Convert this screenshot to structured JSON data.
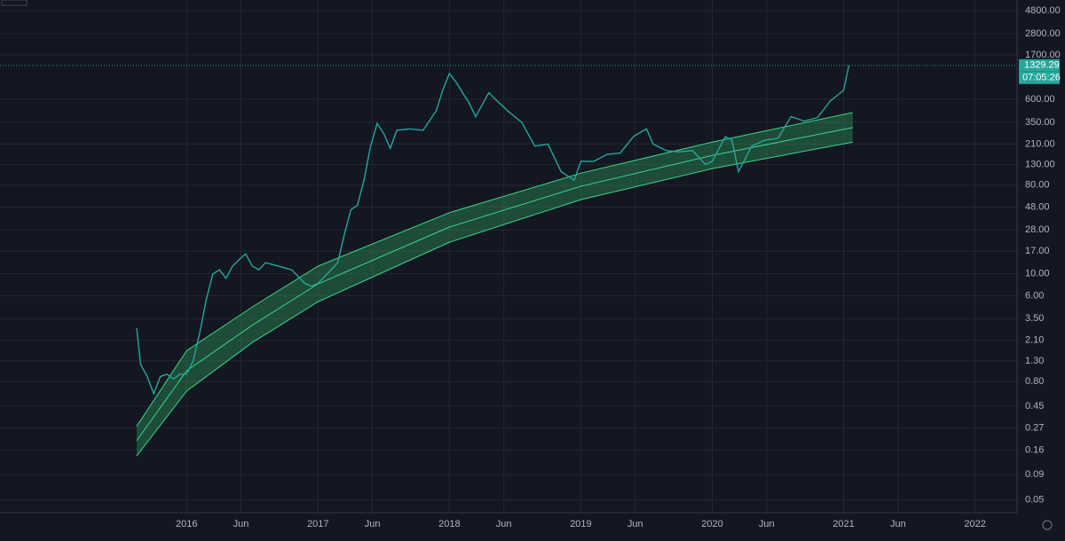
{
  "chart_data": {
    "type": "line",
    "log_scale": true,
    "grid": true,
    "xlim": [
      2014.58,
      2022.32
    ],
    "ylim": [
      0.037,
      6160
    ],
    "xticks": [
      {
        "value": 2016,
        "label": "2016"
      },
      {
        "value": 2016.414,
        "label": "Jun"
      },
      {
        "value": 2017,
        "label": "2017"
      },
      {
        "value": 2017.414,
        "label": "Jun"
      },
      {
        "value": 2018,
        "label": "2018"
      },
      {
        "value": 2018.414,
        "label": "Jun"
      },
      {
        "value": 2019,
        "label": "2019"
      },
      {
        "value": 2019.414,
        "label": "Jun"
      },
      {
        "value": 2020,
        "label": "2020"
      },
      {
        "value": 2020.414,
        "label": "Jun"
      },
      {
        "value": 2021,
        "label": "2021"
      },
      {
        "value": 2021.414,
        "label": "Jun"
      },
      {
        "value": 2022,
        "label": "2022"
      }
    ],
    "yticks": [
      {
        "value": 4800,
        "label": "4800.00"
      },
      {
        "value": 2800,
        "label": "2800.00"
      },
      {
        "value": 1700,
        "label": "1700.00"
      },
      {
        "value": 600,
        "label": "600.00"
      },
      {
        "value": 350,
        "label": "350.00"
      },
      {
        "value": 210,
        "label": "210.00"
      },
      {
        "value": 130,
        "label": "130.00"
      },
      {
        "value": 80,
        "label": "80.00"
      },
      {
        "value": 48,
        "label": "48.00"
      },
      {
        "value": 28,
        "label": "28.00"
      },
      {
        "value": 17,
        "label": "17.00"
      },
      {
        "value": 10,
        "label": "10.00"
      },
      {
        "value": 6,
        "label": "6.00"
      },
      {
        "value": 3.5,
        "label": "3.50"
      },
      {
        "value": 2.1,
        "label": "2.10"
      },
      {
        "value": 1.3,
        "label": "1.30"
      },
      {
        "value": 0.8,
        "label": "0.80"
      },
      {
        "value": 0.45,
        "label": "0.45"
      },
      {
        "value": 0.27,
        "label": "0.27"
      },
      {
        "value": 0.16,
        "label": "0.16"
      },
      {
        "value": 0.09,
        "label": "0.09"
      },
      {
        "value": 0.05,
        "label": "0.05"
      }
    ],
    "band_fill": "#2e9e5b",
    "series": [
      {
        "color": "#3dd68c",
        "x": [
          2015.62,
          2016.0,
          2016.5,
          2017.0,
          2018.0,
          2019.0,
          2020.0,
          2021.07
        ],
        "values": [
          0.14,
          0.64,
          2.0,
          5.2,
          21,
          57,
          118,
          220
        ]
      },
      {
        "color": "#3dd68c",
        "x": [
          2015.62,
          2016.0,
          2016.5,
          2017.0,
          2018.0,
          2019.0,
          2020.0,
          2021.07
        ],
        "values": [
          0.2,
          1.03,
          3.0,
          7.9,
          30,
          78,
          161,
          310
        ]
      },
      {
        "color": "#3dd68c",
        "x": [
          2015.62,
          2016.0,
          2016.5,
          2017.0,
          2018.0,
          2019.0,
          2020.0,
          2021.07
        ],
        "values": [
          0.28,
          1.65,
          4.6,
          12,
          42,
          106,
          220,
          440
        ]
      },
      {
        "color": "#26a69a",
        "x": [
          2015.62,
          2015.65,
          2015.7,
          2015.75,
          2015.8,
          2015.85,
          2015.9,
          2015.95,
          2016.0,
          2016.05,
          2016.1,
          2016.15,
          2016.2,
          2016.25,
          2016.3,
          2016.35,
          2016.4,
          2016.45,
          2016.5,
          2016.55,
          2016.6,
          2016.7,
          2016.8,
          2016.9,
          2016.95,
          2017.0,
          2017.1,
          2017.15,
          2017.2,
          2017.25,
          2017.3,
          2017.35,
          2017.4,
          2017.45,
          2017.5,
          2017.55,
          2017.6,
          2017.7,
          2017.8,
          2017.9,
          2017.95,
          2018.0,
          2018.05,
          2018.1,
          2018.15,
          2018.2,
          2018.3,
          2018.35,
          2018.45,
          2018.55,
          2018.65,
          2018.75,
          2018.85,
          2018.95,
          2019.0,
          2019.1,
          2019.2,
          2019.3,
          2019.4,
          2019.5,
          2019.55,
          2019.65,
          2019.75,
          2019.85,
          2019.95,
          2020.0,
          2020.1,
          2020.15,
          2020.2,
          2020.3,
          2020.4,
          2020.5,
          2020.6,
          2020.7,
          2020.8,
          2020.9,
          2021.0,
          2021.04
        ],
        "values": [
          2.8,
          1.2,
          0.9,
          0.6,
          0.9,
          0.95,
          0.85,
          0.95,
          0.95,
          1.3,
          2.5,
          5.5,
          10,
          11,
          9,
          12,
          14,
          16,
          12,
          11,
          13,
          12,
          11,
          8,
          7.5,
          8,
          11,
          13,
          25,
          45,
          50,
          90,
          200,
          340,
          270,
          190,
          290,
          300,
          290,
          460,
          750,
          1100,
          900,
          700,
          550,
          400,
          700,
          600,
          450,
          350,
          200,
          210,
          110,
          90,
          140,
          140,
          165,
          170,
          250,
          300,
          210,
          180,
          175,
          180,
          130,
          140,
          250,
          230,
          110,
          200,
          230,
          240,
          400,
          360,
          390,
          580,
          740,
          1329.29
        ]
      }
    ],
    "last_price": 1329.29,
    "countdown": "07:05:26"
  }
}
